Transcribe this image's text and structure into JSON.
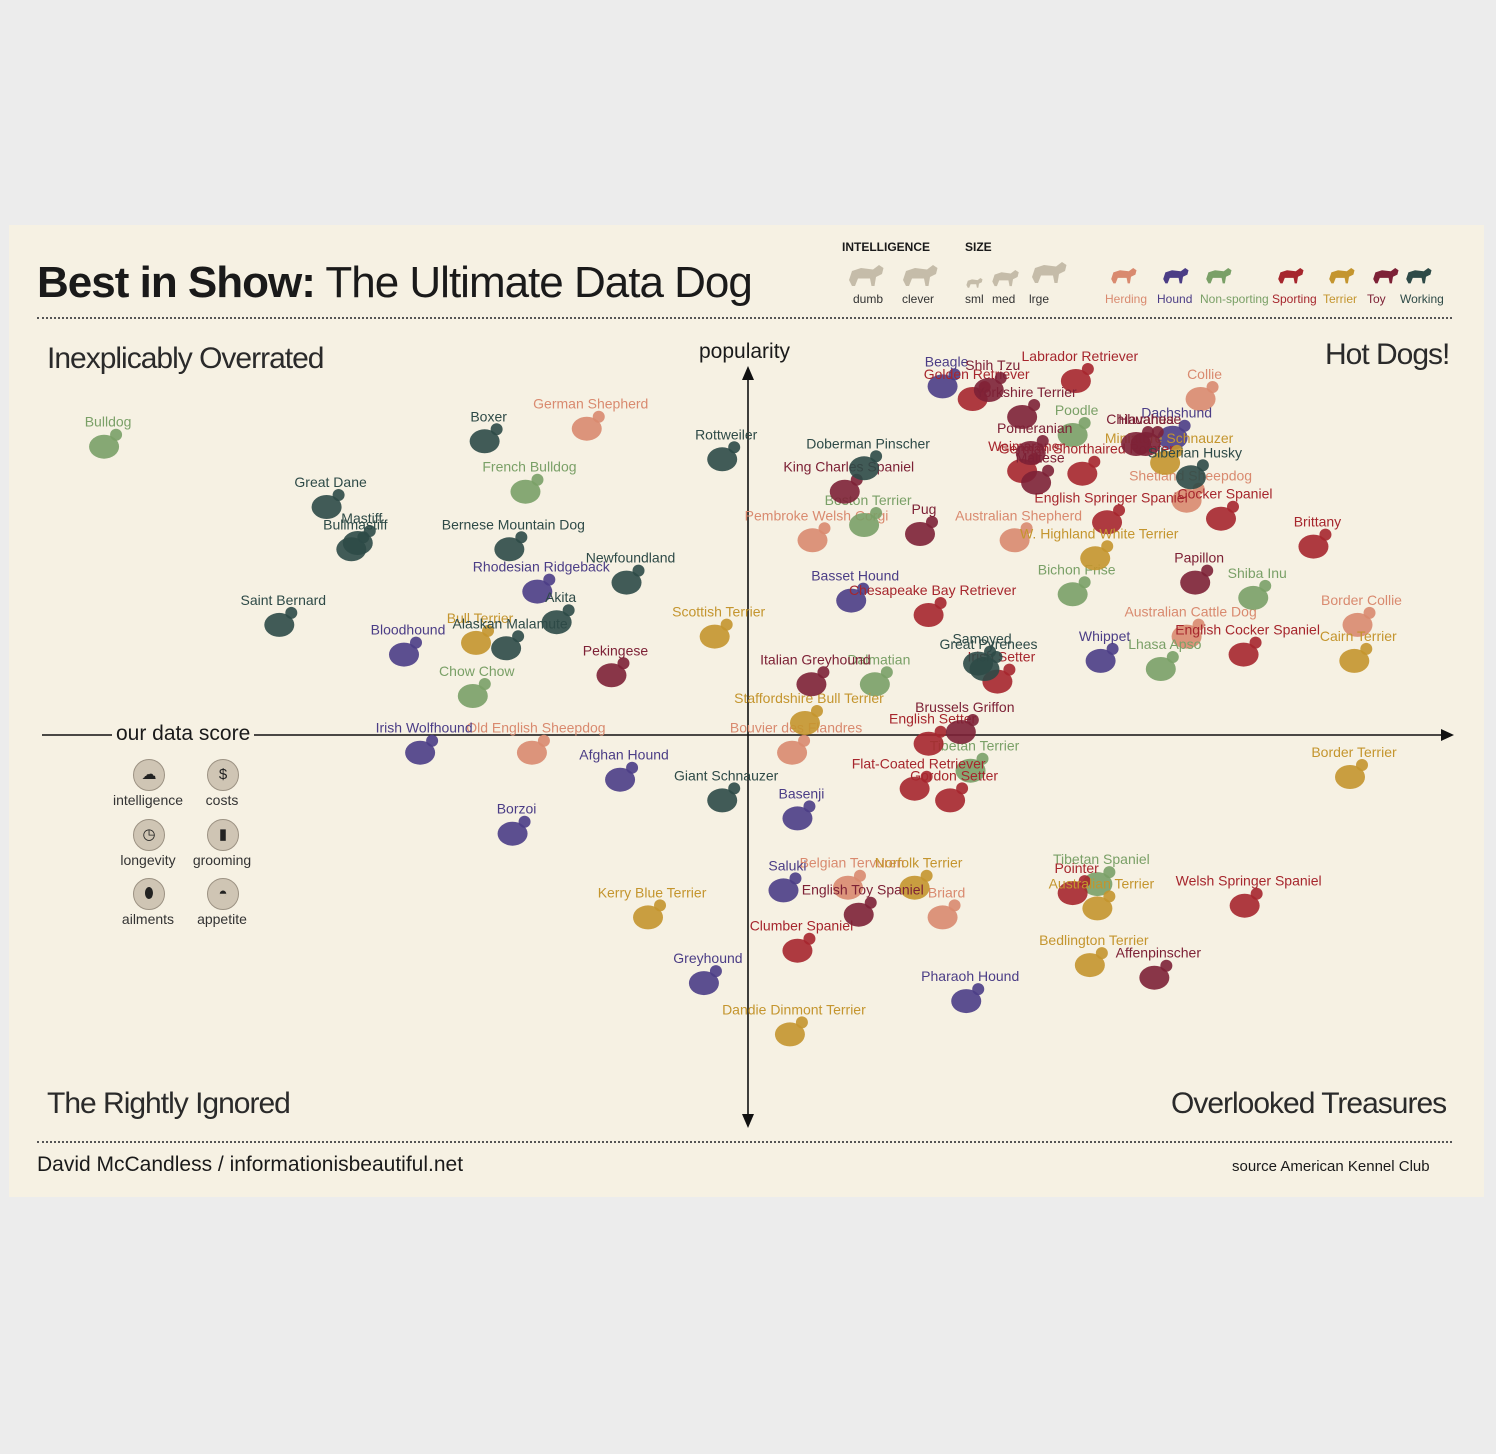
{
  "title": {
    "bold": "Best in Show:",
    "rest": "The Ultimate Data Dog"
  },
  "legend": {
    "intelligence": {
      "heading": "INTELLIGENCE",
      "labels": [
        "dumb",
        "clever"
      ]
    },
    "size": {
      "heading": "SIZE",
      "labels": [
        "sml",
        "med",
        "lrge"
      ]
    },
    "categories": [
      {
        "name": "Herding",
        "color": "#d98a6f"
      },
      {
        "name": "Hound",
        "color": "#4b3d86"
      },
      {
        "name": "Non-sporting",
        "color": "#7aa067"
      },
      {
        "name": "Sporting",
        "color": "#a6262d"
      },
      {
        "name": "Terrier",
        "color": "#c4952e"
      },
      {
        "name": "Toy",
        "color": "#7d2136"
      },
      {
        "name": "Working",
        "color": "#2e4a47"
      }
    ]
  },
  "quadrants": {
    "top_left": "Inexplicably Overrated",
    "top_right": "Hot Dogs!",
    "bottom_left": "The Rightly Ignored",
    "bottom_right": "Overlooked Treasures"
  },
  "score_panel": {
    "title": "our data score",
    "items": [
      {
        "label": "intelligence",
        "icon": "brain-icon",
        "glyph": "☁"
      },
      {
        "label": "costs",
        "icon": "dollar-icon",
        "glyph": "$"
      },
      {
        "label": "longevity",
        "icon": "clock-icon",
        "glyph": "◷"
      },
      {
        "label": "grooming",
        "icon": "comb-icon",
        "glyph": "▮"
      },
      {
        "label": "ailments",
        "icon": "pill-icon",
        "glyph": "⬮"
      },
      {
        "label": "appetite",
        "icon": "bowl-icon",
        "glyph": "◓"
      }
    ]
  },
  "footer": {
    "credit": "David McCandless  / informationisbeautiful.net",
    "source": "source American Kennel Club"
  },
  "chart_data": {
    "type": "scatter",
    "xlabel": "our data score",
    "ylabel": "popularity",
    "series": [
      {
        "name": "Herding",
        "color": "#d98a6f",
        "points": [
          {
            "label": "German Shepherd",
            "x": -1.5,
            "y": 3.47
          },
          {
            "label": "Pembroke Welsh Corgi",
            "x": 0.6,
            "y": 2.23
          },
          {
            "label": "Australian Shepherd",
            "x": 2.48,
            "y": 2.23
          },
          {
            "label": "Shetland Sheepdog",
            "x": 4.08,
            "y": 2.67
          },
          {
            "label": "Border Collie",
            "x": 5.67,
            "y": 1.29
          },
          {
            "label": "Australian Cattle Dog",
            "x": 4.08,
            "y": 1.16
          },
          {
            "label": "Old English Sheepdog",
            "x": -2.01,
            "y": -0.13
          },
          {
            "label": "Bouvier des Flandres",
            "x": 0.41,
            "y": -0.13
          },
          {
            "label": "Belgian Tervuren",
            "x": 0.93,
            "y": -1.63
          },
          {
            "label": "Briard",
            "x": 1.81,
            "y": -1.96
          },
          {
            "label": "Collie",
            "x": 4.21,
            "y": 3.8
          }
        ]
      },
      {
        "name": "Hound",
        "color": "#4b3d86",
        "points": [
          {
            "label": "Beagle",
            "x": 1.81,
            "y": 3.94
          },
          {
            "label": "Dachshund",
            "x": 3.95,
            "y": 3.37
          },
          {
            "label": "Basset Hound",
            "x": 0.96,
            "y": 1.56
          },
          {
            "label": "Rhodesian Ridgeback",
            "x": -1.96,
            "y": 1.66
          },
          {
            "label": "Bloodhound",
            "x": -3.2,
            "y": 0.96
          },
          {
            "label": "Irish Wolfhound",
            "x": -3.05,
            "y": -0.13
          },
          {
            "label": "Afghan Hound",
            "x": -1.19,
            "y": -0.43
          },
          {
            "label": "Borzoi",
            "x": -2.19,
            "y": -1.03
          },
          {
            "label": "Whippet",
            "x": 3.28,
            "y": 0.89
          },
          {
            "label": "Basenji",
            "x": 0.46,
            "y": -0.86
          },
          {
            "label": "Saluki",
            "x": 0.33,
            "y": -1.66
          },
          {
            "label": "Greyhound",
            "x": -0.41,
            "y": -2.69
          },
          {
            "label": "Pharaoh Hound",
            "x": 2.03,
            "y": -2.89
          }
        ]
      },
      {
        "name": "Non-sporting",
        "color": "#7aa067",
        "points": [
          {
            "label": "Bulldog",
            "x": -5.99,
            "y": 3.27
          },
          {
            "label": "French Bulldog",
            "x": -2.07,
            "y": 2.77
          },
          {
            "label": "Poodle",
            "x": 3.02,
            "y": 3.4
          },
          {
            "label": "Boston Terrier",
            "x": 1.08,
            "y": 2.4
          },
          {
            "label": "Bichon Frise",
            "x": 3.02,
            "y": 1.63
          },
          {
            "label": "Lhasa Apso",
            "x": 3.84,
            "y": 0.8
          },
          {
            "label": "Chow Chow",
            "x": -2.56,
            "y": 0.5
          },
          {
            "label": "Dalmatian",
            "x": 1.18,
            "y": 0.63
          },
          {
            "label": "Tibetan Terrier",
            "x": 2.07,
            "y": -0.33
          },
          {
            "label": "Tibetan Spaniel",
            "x": 3.25,
            "y": -1.59
          },
          {
            "label": "Shiba Inu",
            "x": 4.7,
            "y": 1.59
          }
        ]
      },
      {
        "name": "Sporting",
        "color": "#a6262d",
        "points": [
          {
            "label": "Labrador Retriever",
            "x": 3.05,
            "y": 4.0
          },
          {
            "label": "Golden Retriever",
            "x": 2.09,
            "y": 3.8
          },
          {
            "label": "German Shorthaired Pointer",
            "x": 3.11,
            "y": 2.97
          },
          {
            "label": "English Springer Spaniel",
            "x": 3.34,
            "y": 2.43
          },
          {
            "label": "Cocker Spaniel",
            "x": 4.4,
            "y": 2.47
          },
          {
            "label": "Brittany",
            "x": 5.26,
            "y": 2.16
          },
          {
            "label": "Chesapeake Bay Retriever",
            "x": 1.68,
            "y": 1.4
          },
          {
            "label": "Irish Setter",
            "x": 2.32,
            "y": 0.66
          },
          {
            "label": "English Cocker Spaniel",
            "x": 4.61,
            "y": 0.96
          },
          {
            "label": "English Setter",
            "x": 1.68,
            "y": -0.03
          },
          {
            "label": "Flat-Coated Retriever",
            "x": 1.55,
            "y": -0.53
          },
          {
            "label": "Gordon Setter",
            "x": 1.88,
            "y": -0.66
          },
          {
            "label": "Pointer",
            "x": 3.02,
            "y": -1.69
          },
          {
            "label": "Welsh Springer Spaniel",
            "x": 4.62,
            "y": -1.83
          },
          {
            "label": "Clumber Spaniel",
            "x": 0.46,
            "y": -2.33
          },
          {
            "label": "Weimaraner",
            "x": 2.55,
            "y": 3.0
          }
        ]
      },
      {
        "name": "Terrier",
        "color": "#c4952e",
        "points": [
          {
            "label": "Miniature Schnauzer",
            "x": 3.88,
            "y": 3.09
          },
          {
            "label": "W. Highland White Terrier",
            "x": 3.23,
            "y": 2.03
          },
          {
            "label": "Bull Terrier",
            "x": -2.53,
            "y": 1.09
          },
          {
            "label": "Scottish Terrier",
            "x": -0.31,
            "y": 1.16
          },
          {
            "label": "Cairn Terrier",
            "x": 5.64,
            "y": 0.89
          },
          {
            "label": "Staffordshire Bull Terrier",
            "x": 0.53,
            "y": 0.2
          },
          {
            "label": "Border Terrier",
            "x": 5.6,
            "y": -0.4
          },
          {
            "label": "Norfolk Terrier",
            "x": 1.55,
            "y": -1.63
          },
          {
            "label": "Australian Terrier",
            "x": 3.25,
            "y": -1.86
          },
          {
            "label": "Kerry Blue Terrier",
            "x": -0.93,
            "y": -1.96
          },
          {
            "label": "Bedlington Terrier",
            "x": 3.18,
            "y": -2.49
          },
          {
            "label": "Dandie Dinmont Terrier",
            "x": 0.39,
            "y": -3.26
          }
        ]
      },
      {
        "name": "Toy",
        "color": "#7d2136",
        "points": [
          {
            "label": "Shih Tzu",
            "x": 2.24,
            "y": 3.9
          },
          {
            "label": "Yorkshire Terrier",
            "x": 2.55,
            "y": 3.6
          },
          {
            "label": "Chihuahua",
            "x": 3.61,
            "y": 3.3
          },
          {
            "label": "Pomeranian",
            "x": 2.63,
            "y": 3.2
          },
          {
            "label": "Maltese",
            "x": 2.68,
            "y": 2.87
          },
          {
            "label": "Pug",
            "x": 1.6,
            "y": 2.3
          },
          {
            "label": "King Charles Spaniel",
            "x": 0.9,
            "y": 2.77
          },
          {
            "label": "Papillon",
            "x": 4.16,
            "y": 1.76
          },
          {
            "label": "Italian Greyhound",
            "x": 0.59,
            "y": 0.63
          },
          {
            "label": "Pekingese",
            "x": -1.27,
            "y": 0.73
          },
          {
            "label": "Brussels Griffon",
            "x": 1.98,
            "y": 0.1
          },
          {
            "label": "English Toy Spaniel",
            "x": 1.03,
            "y": -1.93
          },
          {
            "label": "Affenpinscher",
            "x": 3.78,
            "y": -2.63
          },
          {
            "label": "Havanese",
            "x": 3.7,
            "y": 3.3
          }
        ]
      },
      {
        "name": "Working",
        "color": "#2e4a47",
        "points": [
          {
            "label": "Boxer",
            "x": -2.45,
            "y": 3.33
          },
          {
            "label": "Rottweiler",
            "x": -0.24,
            "y": 3.13
          },
          {
            "label": "Doberman Pinscher",
            "x": 1.08,
            "y": 3.03
          },
          {
            "label": "Great Dane",
            "x": -3.92,
            "y": 2.6
          },
          {
            "label": "Bullmastiff",
            "x": -3.69,
            "y": 2.13
          },
          {
            "label": "Mastiff",
            "x": -3.63,
            "y": 2.2
          },
          {
            "label": "Bernese Mountain Dog",
            "x": -2.22,
            "y": 2.13
          },
          {
            "label": "Newfoundland",
            "x": -1.13,
            "y": 1.76
          },
          {
            "label": "Saint Bernard",
            "x": -4.36,
            "y": 1.29
          },
          {
            "label": "Akita",
            "x": -1.78,
            "y": 1.32
          },
          {
            "label": "Alaskan Malamute",
            "x": -2.25,
            "y": 1.03
          },
          {
            "label": "Samoyed",
            "x": 2.14,
            "y": 0.86
          },
          {
            "label": "Siberian Husky",
            "x": 4.12,
            "y": 2.93
          },
          {
            "label": "Giant Schnauzer",
            "x": -0.24,
            "y": -0.66
          },
          {
            "label": "Great Pyrenees",
            "x": 2.2,
            "y": 0.8
          }
        ]
      }
    ]
  }
}
